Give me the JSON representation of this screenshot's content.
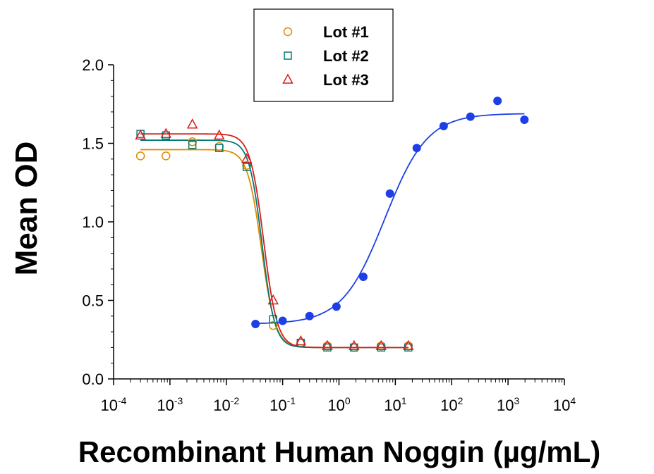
{
  "chart_data": {
    "type": "scatter",
    "xlabel": "Recombinant Human Noggin (µg/mL)",
    "ylabel": "Mean OD",
    "xscale": "log",
    "xlim": [
      0.0001,
      10000
    ],
    "ylim": [
      0.0,
      2.0
    ],
    "x_ticks": [
      {
        "base": "10",
        "exp": "-4"
      },
      {
        "base": "10",
        "exp": "-3"
      },
      {
        "base": "10",
        "exp": "-2"
      },
      {
        "base": "10",
        "exp": "-1"
      },
      {
        "base": "10",
        "exp": "0"
      },
      {
        "base": "10",
        "exp": "1"
      },
      {
        "base": "10",
        "exp": "2"
      },
      {
        "base": "10",
        "exp": "3"
      },
      {
        "base": "10",
        "exp": "4"
      }
    ],
    "y_ticks": [
      "0.0",
      "0.5",
      "1.0",
      "1.5",
      "2.0"
    ],
    "grid": false,
    "legend_position": "top-center",
    "series": [
      {
        "name": "Lot #1",
        "marker": "circle-open",
        "color": "#E08A00",
        "x": [
          0.0003,
          0.00085,
          0.0025,
          0.0075,
          0.023,
          0.068,
          0.21,
          0.62,
          1.85,
          5.6,
          17
        ],
        "y": [
          1.42,
          1.42,
          1.51,
          1.48,
          1.36,
          0.34,
          0.23,
          0.21,
          0.2,
          0.21,
          0.21
        ],
        "fit": {
          "top": 1.46,
          "bottom": 0.2,
          "ec50": 0.042,
          "hill": -3.5
        }
      },
      {
        "name": "Lot #2",
        "marker": "square-open",
        "color": "#007A78",
        "x": [
          0.0003,
          0.00085,
          0.0025,
          0.0075,
          0.023,
          0.068,
          0.21,
          0.62,
          1.85,
          5.6,
          17
        ],
        "y": [
          1.56,
          1.55,
          1.49,
          1.47,
          1.35,
          0.38,
          0.23,
          0.2,
          0.2,
          0.2,
          0.2
        ],
        "fit": {
          "top": 1.52,
          "bottom": 0.2,
          "ec50": 0.043,
          "hill": -3.8
        }
      },
      {
        "name": "Lot #3",
        "marker": "triangle-open",
        "color": "#D81E1E",
        "x": [
          0.0003,
          0.00085,
          0.0025,
          0.0075,
          0.023,
          0.068,
          0.21,
          0.62,
          1.85,
          5.6,
          17
        ],
        "y": [
          1.55,
          1.56,
          1.62,
          1.55,
          1.4,
          0.5,
          0.24,
          0.21,
          0.21,
          0.21,
          0.21
        ],
        "fit": {
          "top": 1.56,
          "bottom": 0.2,
          "ec50": 0.046,
          "hill": -3.6
        }
      },
      {
        "marker": "circle-filled",
        "color": "#1E3FE6",
        "x": [
          0.033,
          0.1,
          0.3,
          0.9,
          2.7,
          8.0,
          24,
          72,
          215,
          650,
          1950
        ],
        "y": [
          0.35,
          0.37,
          0.4,
          0.46,
          0.65,
          1.18,
          1.47,
          1.61,
          1.67,
          1.77,
          1.65
        ],
        "fit": {
          "top": 1.69,
          "bottom": 0.35,
          "ec50": 6.5,
          "hill": 1.15
        }
      }
    ]
  }
}
